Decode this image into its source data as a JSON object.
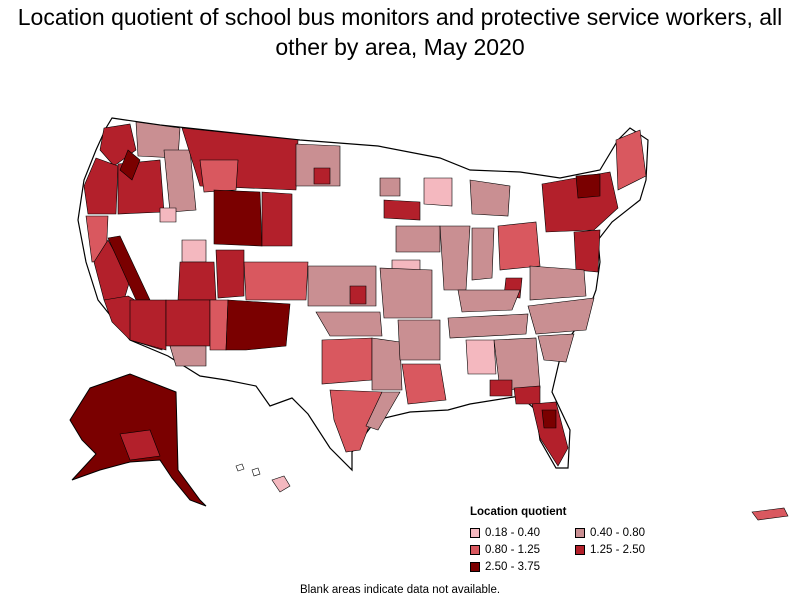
{
  "title": "Location quotient of school bus monitors and protective service workers, all other by area, May 2020",
  "legend": {
    "title": "Location quotient",
    "items": [
      {
        "label": "0.18 - 0.40",
        "color": "#f4b8bf"
      },
      {
        "label": "0.40 - 0.80",
        "color": "#c98f92"
      },
      {
        "label": "0.80 - 1.25",
        "color": "#d9585f"
      },
      {
        "label": "1.25 - 2.50",
        "color": "#b3202b"
      },
      {
        "label": "2.50 - 3.75",
        "color": "#7a0000"
      }
    ]
  },
  "footnote": "Blank areas indicate data not available.",
  "colors": {
    "no_data": "#ffffff",
    "outline": "#000000"
  }
}
